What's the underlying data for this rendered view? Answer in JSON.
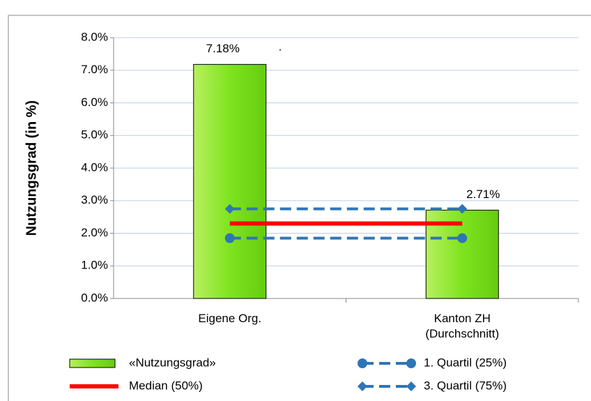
{
  "chart_data": {
    "type": "bar",
    "ylabel": "Nutzungsgrad (in %)",
    "categories": [
      "Eigene Org.",
      "Kanton ZH (Durchschnitt)"
    ],
    "annotations": [
      "."
    ],
    "ylim": [
      0,
      8
    ],
    "yticks": [
      {
        "value": 0,
        "label": "0.0%"
      },
      {
        "value": 1,
        "label": "1.0%"
      },
      {
        "value": 2,
        "label": "2.0%"
      },
      {
        "value": 3,
        "label": "3.0%"
      },
      {
        "value": 4,
        "label": "4.0%"
      },
      {
        "value": 5,
        "label": "5.0%"
      },
      {
        "value": 6,
        "label": "6.0%"
      },
      {
        "value": 7,
        "label": "7.0%"
      },
      {
        "value": 8,
        "label": "8.0%"
      }
    ],
    "grid": true,
    "series": [
      {
        "name": "«Nutzungsgrad»",
        "type": "bar",
        "color": "#7fe31f",
        "values": [
          7.18,
          2.71
        ],
        "value_labels": [
          "7.18%",
          "2.71%"
        ]
      },
      {
        "name": "Median (50%)",
        "type": "line",
        "color": "#ff0000",
        "values": [
          2.3,
          2.3
        ]
      },
      {
        "name": "1. Quartil (25%)",
        "type": "line",
        "marker": "circle",
        "dashed": true,
        "color": "#2e75b6",
        "values": [
          1.85,
          1.85
        ]
      },
      {
        "name": "3. Quartil (75%)",
        "type": "line",
        "marker": "diamond",
        "dashed": true,
        "color": "#2e75b6",
        "values": [
          2.75,
          2.75
        ]
      }
    ]
  }
}
